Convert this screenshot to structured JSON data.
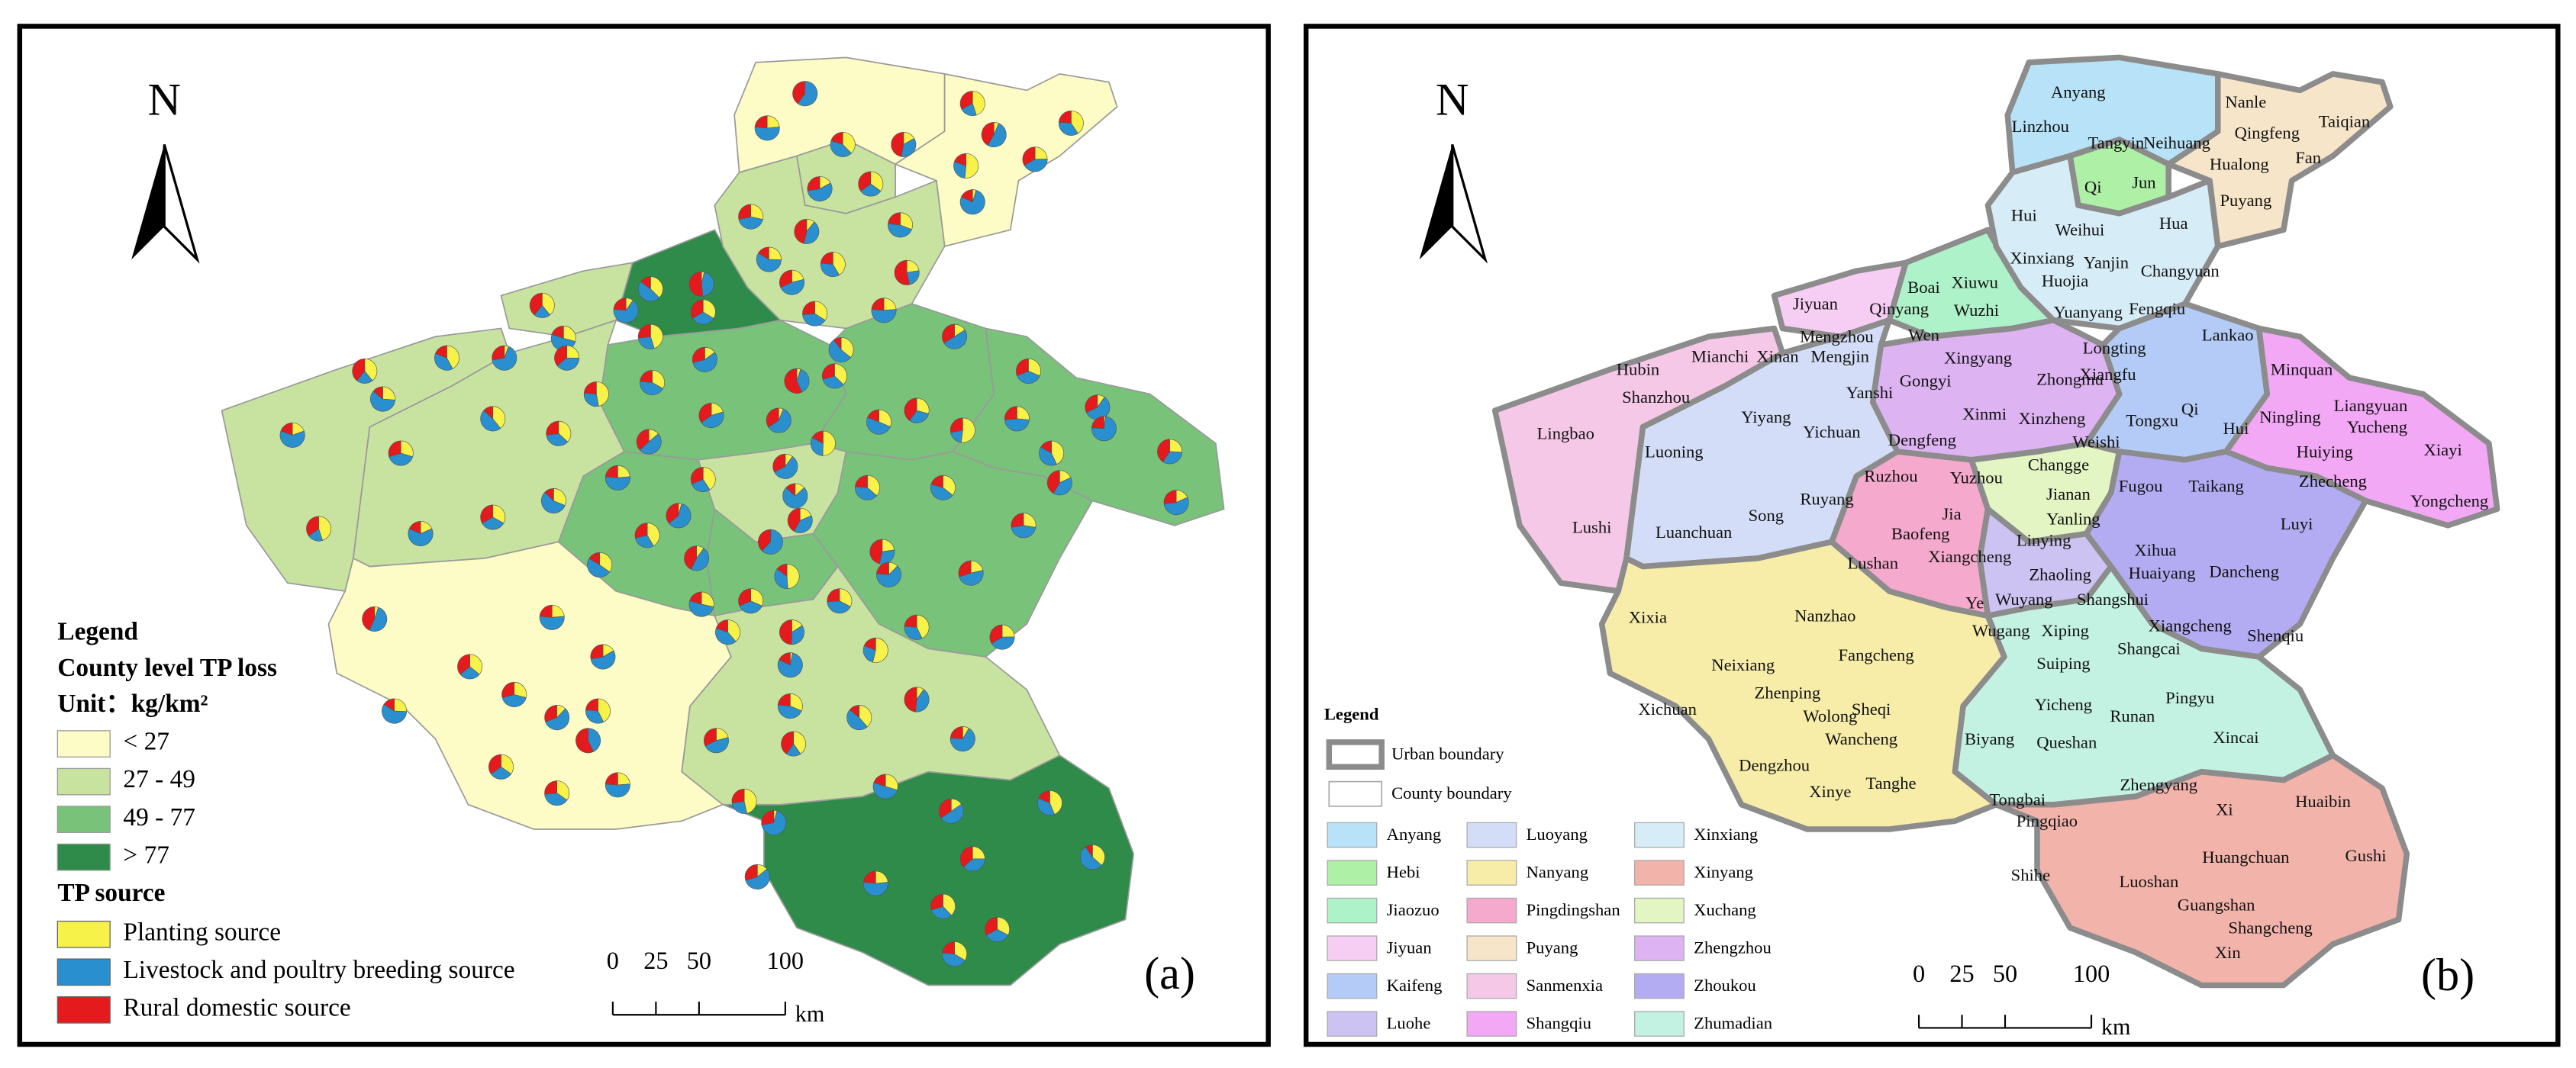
{
  "panel_a": {
    "label": "(a)",
    "north": "N",
    "legend": {
      "title": "Legend",
      "subtitle": "County level TP loss",
      "unit": "Unit：kg/km²",
      "classes": [
        {
          "label": "< 27",
          "color": "#fdfbc6"
        },
        {
          "label": "27 - 49",
          "color": "#c8e3a0"
        },
        {
          "label": "49 - 77",
          "color": "#78c27a"
        },
        {
          "label": "> 77",
          "color": "#2f8b4a"
        }
      ],
      "source_title": "TP source",
      "sources": [
        {
          "label": "Planting source",
          "color": "#f7f24a"
        },
        {
          "label": "Livestock and poultry breeding source",
          "color": "#2a8fcf"
        },
        {
          "label": "Rural domestic source",
          "color": "#e41a1c"
        }
      ]
    },
    "scale": {
      "ticks": [
        0,
        25,
        50,
        100
      ],
      "unit": "km"
    }
  },
  "panel_b": {
    "label": "(b)",
    "north": "N",
    "legend": {
      "title": "Legend",
      "boundaries": [
        "Urban boundary",
        "County boundary"
      ],
      "cities": [
        {
          "name": "Anyang",
          "color": "#b7e2f7"
        },
        {
          "name": "Hebi",
          "color": "#aef0a6"
        },
        {
          "name": "Jiaozuo",
          "color": "#aef2c9"
        },
        {
          "name": "Jiyuan",
          "color": "#f6cdf3"
        },
        {
          "name": "Kaifeng",
          "color": "#b3cbf6"
        },
        {
          "name": "Luohe",
          "color": "#cdc3f2"
        },
        {
          "name": "Luoyang",
          "color": "#d3ddf7"
        },
        {
          "name": "Nanyang",
          "color": "#f7eda9"
        },
        {
          "name": "Pingdingshan",
          "color": "#f5a9cc"
        },
        {
          "name": "Puyang",
          "color": "#f7e5c9"
        },
        {
          "name": "Sanmenxia",
          "color": "#f6c8e8"
        },
        {
          "name": "Shangqiu",
          "color": "#f2a8f5"
        },
        {
          "name": "Xinxiang",
          "color": "#d6edf7"
        },
        {
          "name": "Xinyang",
          "color": "#f2b3ab"
        },
        {
          "name": "Xuchang",
          "color": "#e2f5c2"
        },
        {
          "name": "Zhengzhou",
          "color": "#ddb3f2"
        },
        {
          "name": "Zhoukou",
          "color": "#b3acf2"
        },
        {
          "name": "Zhumadian",
          "color": "#c3f2e2"
        }
      ]
    },
    "counties": [
      "Anyang",
      "Linzhou",
      "Nanle",
      "Qingfeng",
      "Taiqian",
      "Tangyin",
      "Neihuang",
      "Fan",
      "Hualong",
      "Qi",
      "Jun",
      "Puyang",
      "Hui",
      "Hua",
      "Weihui",
      "Xinxiang",
      "Yanjin",
      "Changyuan",
      "Boai",
      "Xiuwu",
      "Huojia",
      "Jiyuan",
      "Qinyang",
      "Wuzhi",
      "Yuanyang",
      "Fengqiu",
      "Mengzhou",
      "Wen",
      "Lankao",
      "Mianchi",
      "Xinan",
      "Mengjin",
      "Longting",
      "Xingyang",
      "Hubin",
      "Xiangfu",
      "Minquan",
      "Gongyi",
      "Zhongmu",
      "Shanzhou",
      "Yanshi",
      "Liangyuan",
      "Qi",
      "Yiyang",
      "Xinmi",
      "Ningling",
      "Yucheng",
      "Lingbao",
      "Yichuan",
      "Xinzheng",
      "Tongxu",
      "Hui",
      "Dengfeng",
      "Weishi",
      "Huiying",
      "Xiayi",
      "Luoning",
      "Changge",
      "Ruzhou",
      "Yuzhou",
      "Jianan",
      "Fugou",
      "Taikang",
      "Zhecheng",
      "Ruyang",
      "Jia",
      "Yongcheng",
      "Song",
      "Yanling",
      "Luyi",
      "Lushi",
      "Luanchuan",
      "Baofeng",
      "Linying",
      "Xihua",
      "Lushan",
      "Xiangcheng",
      "Dancheng",
      "Zhaoling",
      "Huaiyang",
      "Wuyang",
      "Shangshui",
      "Nanzhao",
      "Ye",
      "Xixia",
      "Xiangcheng",
      "Wugang",
      "Xiping",
      "Shenqiu",
      "Shangcai",
      "Fangcheng",
      "Neixiang",
      "Suiping",
      "Zhenping",
      "Yicheng",
      "Pingyu",
      "Xichuan",
      "Sheqi",
      "Wolong",
      "Runan",
      "Wancheng",
      "Biyang",
      "Queshan",
      "Xincai",
      "Dengzhou",
      "Xinye",
      "Tanghe",
      "Zhengyang",
      "Tongbai",
      "Xi",
      "Huaibin",
      "Pingqiao",
      "Huangchuan",
      "Gushi",
      "Shihe",
      "Luoshan",
      "Guangshan",
      "Shangcheng",
      "Xin"
    ],
    "scale": {
      "ticks": [
        0,
        25,
        50,
        100
      ],
      "unit": "km"
    }
  }
}
